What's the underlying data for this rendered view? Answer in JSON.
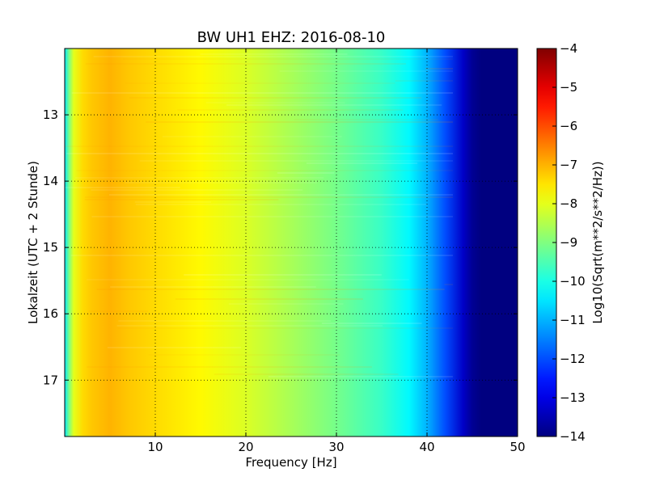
{
  "chart_data": {
    "type": "heatmap",
    "title": "BW UH1 EHZ: 2016-08-10",
    "xlabel": "Frequency [Hz]",
    "ylabel": "Lokalzeit (UTC + 2 Stunde)",
    "colorbar_label": "Log10(Sqrt(m**2/s**2/Hz))",
    "xlim": [
      0,
      50
    ],
    "ylim": [
      17.85,
      12.0
    ],
    "x_ticks": [
      10,
      20,
      30,
      40,
      50
    ],
    "y_ticks": [
      13,
      14,
      15,
      16,
      17
    ],
    "color_range": [
      -14,
      -4
    ],
    "colorbar_ticks": [
      -4,
      -5,
      -6,
      -7,
      -8,
      -9,
      -10,
      -11,
      -12,
      -13,
      -14
    ],
    "colormap": "jet",
    "grid": true,
    "spectrum_profile": {
      "frequency_hz": [
        0,
        0.5,
        1,
        2,
        3,
        5,
        7,
        10,
        15,
        20,
        25,
        30,
        35,
        38,
        40,
        42,
        44,
        45,
        46,
        50
      ],
      "value": [
        -10.5,
        -9.0,
        -8.0,
        -7.4,
        -7.2,
        -7.0,
        -7.2,
        -7.4,
        -7.7,
        -8.1,
        -8.6,
        -9.1,
        -9.7,
        -10.3,
        -11.0,
        -12.0,
        -13.3,
        -13.8,
        -14.0,
        -14.0
      ]
    }
  }
}
